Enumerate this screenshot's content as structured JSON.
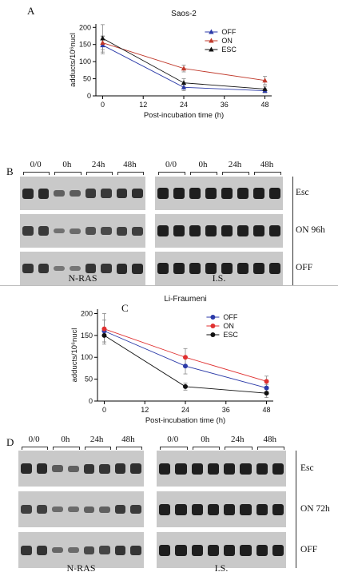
{
  "figure": {
    "panel_labels": [
      "A",
      "B",
      "C",
      "D"
    ],
    "gel_lane_headers": [
      "0/0",
      "0h",
      "24h",
      "48h"
    ],
    "blot_b": {
      "row_labels": [
        "Esc",
        "ON 96h",
        "OFF"
      ],
      "gel_labels": [
        "N-RAS",
        "I.S."
      ]
    },
    "blot_d": {
      "row_labels": [
        "Esc",
        "ON 72h",
        "OFF"
      ],
      "gel_labels": [
        "N-RAS",
        "I.S."
      ]
    }
  },
  "chart_data": [
    {
      "type": "line",
      "title": "Saos-2",
      "xlabel": "Post-incubation time (h)",
      "ylabel": "adducts/10⁶nucl",
      "x": [
        0,
        24,
        48
      ],
      "xticks": [
        0,
        12,
        24,
        36,
        48
      ],
      "yticks": [
        0,
        50,
        100,
        150,
        200
      ],
      "xlim": [
        -2,
        50
      ],
      "ylim": [
        0,
        210
      ],
      "legend_position": "top-right",
      "marker": "triangle",
      "series": [
        {
          "name": "OFF",
          "values": [
            148,
            25,
            15
          ],
          "errors": [
            25,
            10,
            6
          ],
          "color": "#2b3aa8"
        },
        {
          "name": "ON",
          "values": [
            155,
            80,
            45
          ],
          "errors": [
            20,
            10,
            12
          ],
          "color": "#c0392b"
        },
        {
          "name": "ESC",
          "values": [
            168,
            38,
            20
          ],
          "errors": [
            40,
            12,
            8
          ],
          "color": "#111111"
        }
      ]
    },
    {
      "type": "line",
      "title": "Li-Fraumeni",
      "xlabel": "Post-incubation time (h)",
      "ylabel": "adducts/10⁶nucl",
      "x": [
        0,
        24,
        48
      ],
      "xticks": [
        0,
        12,
        24,
        36,
        48
      ],
      "yticks": [
        0,
        50,
        100,
        150,
        200
      ],
      "xlim": [
        -2,
        50
      ],
      "ylim": [
        0,
        210
      ],
      "legend_position": "top-right",
      "marker": "circle",
      "series": [
        {
          "name": "OFF",
          "values": [
            160,
            80,
            30
          ],
          "errors": [
            25,
            18,
            8
          ],
          "color": "#2b3aa8"
        },
        {
          "name": "ON",
          "values": [
            165,
            100,
            45
          ],
          "errors": [
            35,
            20,
            12
          ],
          "color": "#e03030"
        },
        {
          "name": "ESC",
          "values": [
            150,
            33,
            18
          ],
          "errors": [
            15,
            8,
            10
          ],
          "color": "#111111"
        }
      ]
    }
  ]
}
